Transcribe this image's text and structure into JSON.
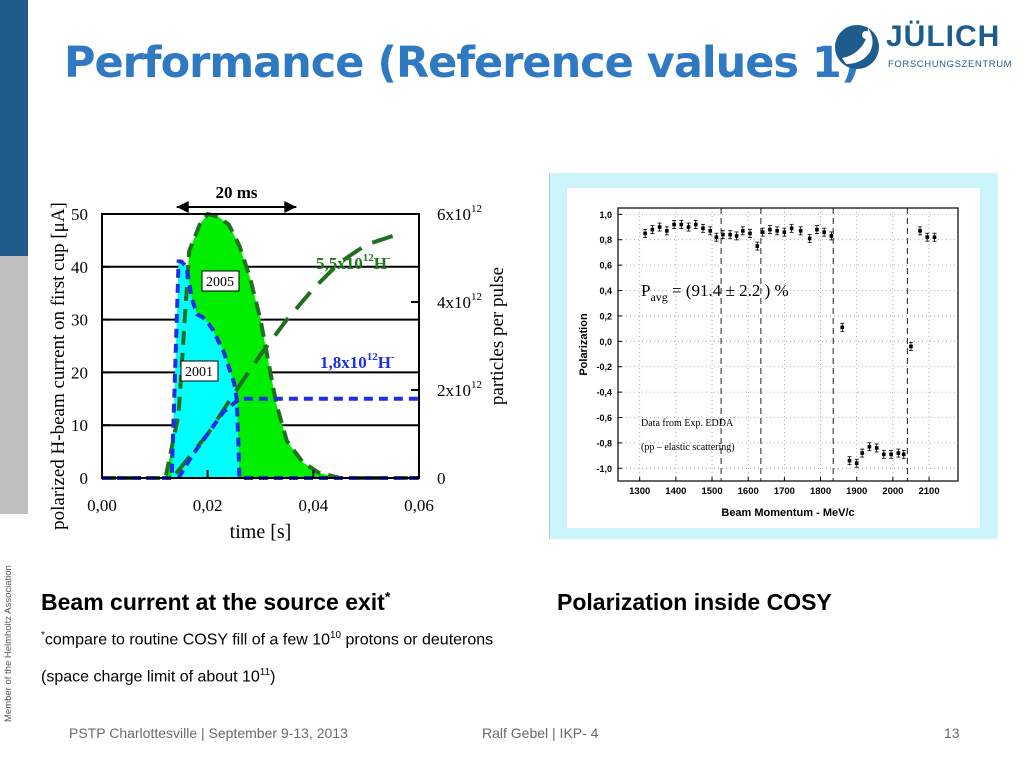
{
  "slide": {
    "title": "Performance (Reference values 1)",
    "side_text": "Member of the Helmholtz Association",
    "logo": {
      "name": "JÜLICH",
      "subtitle": "FORSCHUNGSZENTRUM"
    },
    "caption_left": "Beam current at the source exit",
    "caption_left_mark": "*",
    "caption_right": "Polarization inside COSY",
    "note1_mark": "*",
    "note1_text": "compare to routine COSY fill of a few 10",
    "note1_exp": "10",
    "note1_tail": " protons or deuterons",
    "note2_text": "(space charge limit of about 10",
    "note2_exp": "11",
    "note2_tail": ")",
    "footer": {
      "event": "PSTP Charlottesville | September 9-13, 2013",
      "author": "Ralf Gebel | IKP- 4",
      "page": "13"
    },
    "colors": {
      "title": "#2e79c2",
      "sidebar_dark": "#1d5c8c",
      "sidebar_gray": "#bfbfbf",
      "frame": "#ccf4fb"
    }
  },
  "chart_data": [
    {
      "type": "area",
      "title": "",
      "xlabel": "time [s]",
      "ylabel": "polarized H-beam current on first cup [μA]",
      "y2label": "particles per pulse",
      "xlim": [
        0,
        0.06
      ],
      "ylim": [
        0,
        50
      ],
      "x_ticks": [
        "0,00",
        "0,02",
        "0,04",
        "0,06"
      ],
      "y_ticks": [
        "0",
        "10",
        "20",
        "30",
        "40",
        "50"
      ],
      "y2_ticks": [
        "0",
        "2x10",
        "4x10",
        "6x10"
      ],
      "y2_exp": "12",
      "pulse_label": "20 ms",
      "pulse_start": 0.013,
      "pulse_end": 0.033,
      "series": [
        {
          "name": "2005",
          "fill": "#00ee00",
          "x": [
            0,
            0.012,
            0.0145,
            0.0165,
            0.0185,
            0.02,
            0.022,
            0.024,
            0.026,
            0.028,
            0.03,
            0.0315,
            0.033,
            0.035,
            0.038,
            0.041,
            0.045,
            0.06
          ],
          "y": [
            0,
            0,
            12,
            43,
            48,
            50,
            49.5,
            48,
            44,
            38,
            30,
            22,
            14,
            7,
            3,
            1,
            0,
            0
          ]
        },
        {
          "name": "2001",
          "fill": "#00ffff",
          "x": [
            0,
            0.0132,
            0.0143,
            0.0145,
            0.015,
            0.016,
            0.017,
            0.018,
            0.019,
            0.02,
            0.021,
            0.022,
            0.023,
            0.024,
            0.025,
            0.0255,
            0.0258,
            0.026,
            0.06
          ],
          "y": [
            0,
            0,
            35,
            41,
            41,
            40,
            34,
            31,
            30.5,
            29.5,
            28,
            26,
            24,
            21,
            18,
            15,
            7,
            0,
            0
          ]
        },
        {
          "name": "5,5x10^12 H- (particles per pulse)",
          "style": "dashed",
          "x": [
            0.014,
            0.02,
            0.026,
            0.03,
            0.035,
            0.04,
            0.045,
            0.05,
            0.055
          ],
          "y": [
            0.1,
            1.0,
            2.1,
            2.8,
            3.6,
            4.3,
            4.9,
            5.3,
            5.5
          ]
        },
        {
          "name": "1,8x10^12 H- (particles per pulse)",
          "style": "dashed",
          "x": [
            0.0145,
            0.017,
            0.02,
            0.023,
            0.026,
            0.06
          ],
          "y": [
            0.0,
            0.5,
            1.0,
            1.5,
            1.8,
            1.8
          ]
        }
      ],
      "annotations": [
        {
          "text": "2005"
        },
        {
          "text": "2001"
        },
        {
          "text": "5,5x10",
          "exp": "12",
          "tail": "H",
          "sup2": "-"
        },
        {
          "text": "1,8x10",
          "exp": "12",
          "tail": "H",
          "sup2": "-"
        }
      ]
    },
    {
      "type": "scatter",
      "title": "",
      "xlabel": "Beam Momentum - MeV/c",
      "ylabel": "Polarization",
      "xlim": [
        1240,
        2180
      ],
      "ylim": [
        -1.1,
        1.05
      ],
      "x_ticks": [
        1300,
        1400,
        1500,
        1600,
        1700,
        1800,
        1900,
        2000,
        2100
      ],
      "y_ticks": [
        "1,0",
        "0,8",
        "0,6",
        "0,4",
        "0,2",
        "0,0",
        "-0,2",
        "-0,4",
        "-0,6",
        "-0,8",
        "-1,0"
      ],
      "pavg_text": "P",
      "pavg_sub": "avg",
      "pavg_value": " = (91.4 ± 2.2 ) %",
      "note_line1": "Data from Exp. EDDA",
      "note_line2": "(pp – elastic scattering)",
      "series": [
        {
          "name": "EDDA",
          "x": [
            1315,
            1335,
            1355,
            1375,
            1395,
            1415,
            1435,
            1455,
            1475,
            1495,
            1512,
            1530,
            1550,
            1568,
            1585,
            1605,
            1625,
            1640,
            1660,
            1680,
            1700,
            1720,
            1745,
            1770,
            1790,
            1810,
            1830,
            1860,
            1880,
            1900,
            1915,
            1935,
            1955,
            1975,
            1995,
            2015,
            2030,
            2050,
            2075,
            2095,
            2115
          ],
          "y": [
            0.85,
            0.88,
            0.9,
            0.87,
            0.92,
            0.92,
            0.9,
            0.92,
            0.89,
            0.87,
            0.82,
            0.84,
            0.84,
            0.83,
            0.87,
            0.85,
            0.75,
            0.86,
            0.88,
            0.87,
            0.86,
            0.89,
            0.87,
            0.81,
            0.88,
            0.86,
            0.83,
            0.11,
            -0.94,
            -0.96,
            -0.88,
            -0.83,
            -0.84,
            -0.89,
            -0.89,
            -0.88,
            -0.89,
            -0.04,
            0.87,
            0.82,
            0.82
          ]
        }
      ],
      "vlines": [
        1525,
        1635,
        1835,
        2040
      ]
    }
  ]
}
